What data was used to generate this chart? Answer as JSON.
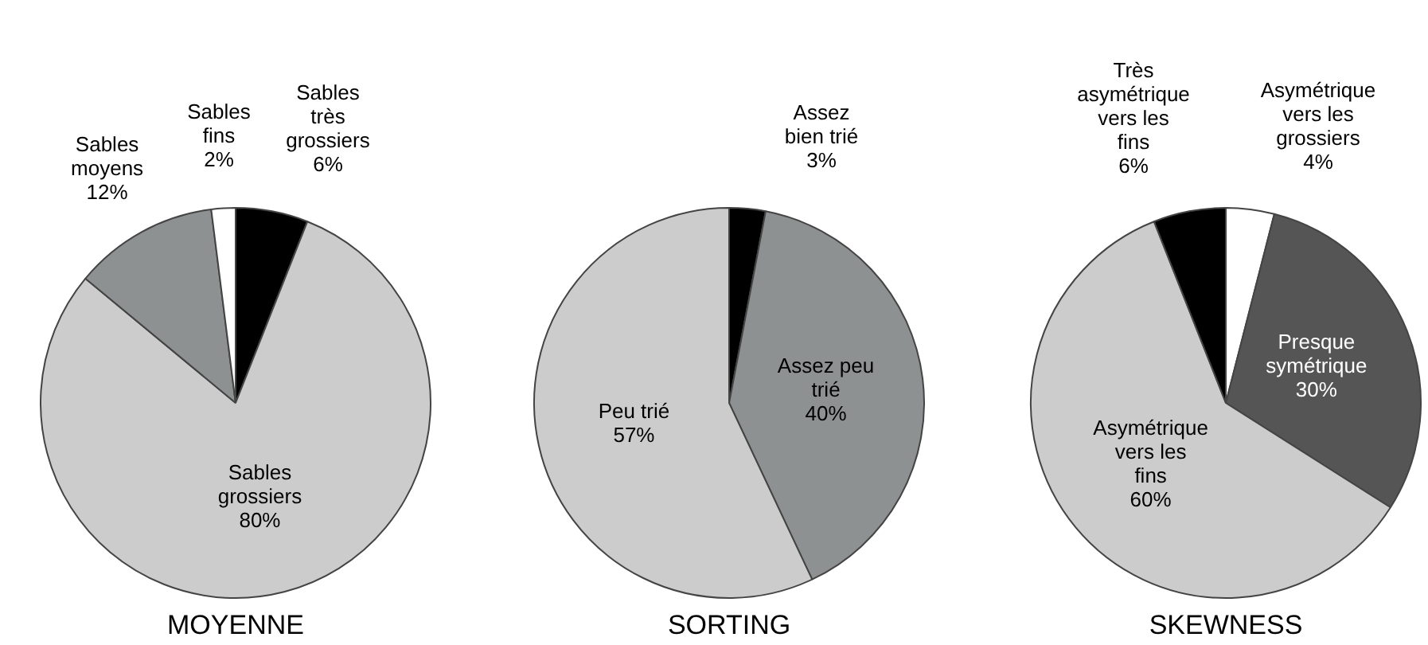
{
  "chart_data": [
    {
      "type": "pie",
      "title": "MOYENNE",
      "categories": [
        "Sables très grossiers",
        "Sables grossiers",
        "Sables moyens",
        "Sables fins"
      ],
      "values": [
        6,
        80,
        12,
        2
      ],
      "colors": [
        "#000000",
        "#cccccc",
        "#8e9191",
        "#ffffff"
      ],
      "value_labels": [
        "6%",
        "80%",
        "12%",
        "2%"
      ]
    },
    {
      "type": "pie",
      "title": "SORTING",
      "categories": [
        "Assez bien trié",
        "Assez peu trié",
        "Peu trié"
      ],
      "values": [
        3,
        40,
        57
      ],
      "colors": [
        "#000000",
        "#8e9191",
        "#cccccc"
      ],
      "value_labels": [
        "3%",
        "40%",
        "57%"
      ]
    },
    {
      "type": "pie",
      "title": "SKEWNESS",
      "categories": [
        "Asymétrique vers les grossiers",
        "Presque symétrique",
        "Asymétrique vers les fins",
        "Très asymétrique vers les fins"
      ],
      "values": [
        4,
        30,
        60,
        6
      ],
      "colors": [
        "#ffffff",
        "#555555",
        "#cccccc",
        "#000000"
      ],
      "value_labels": [
        "4%",
        "30%",
        "60%",
        "6%"
      ]
    }
  ]
}
